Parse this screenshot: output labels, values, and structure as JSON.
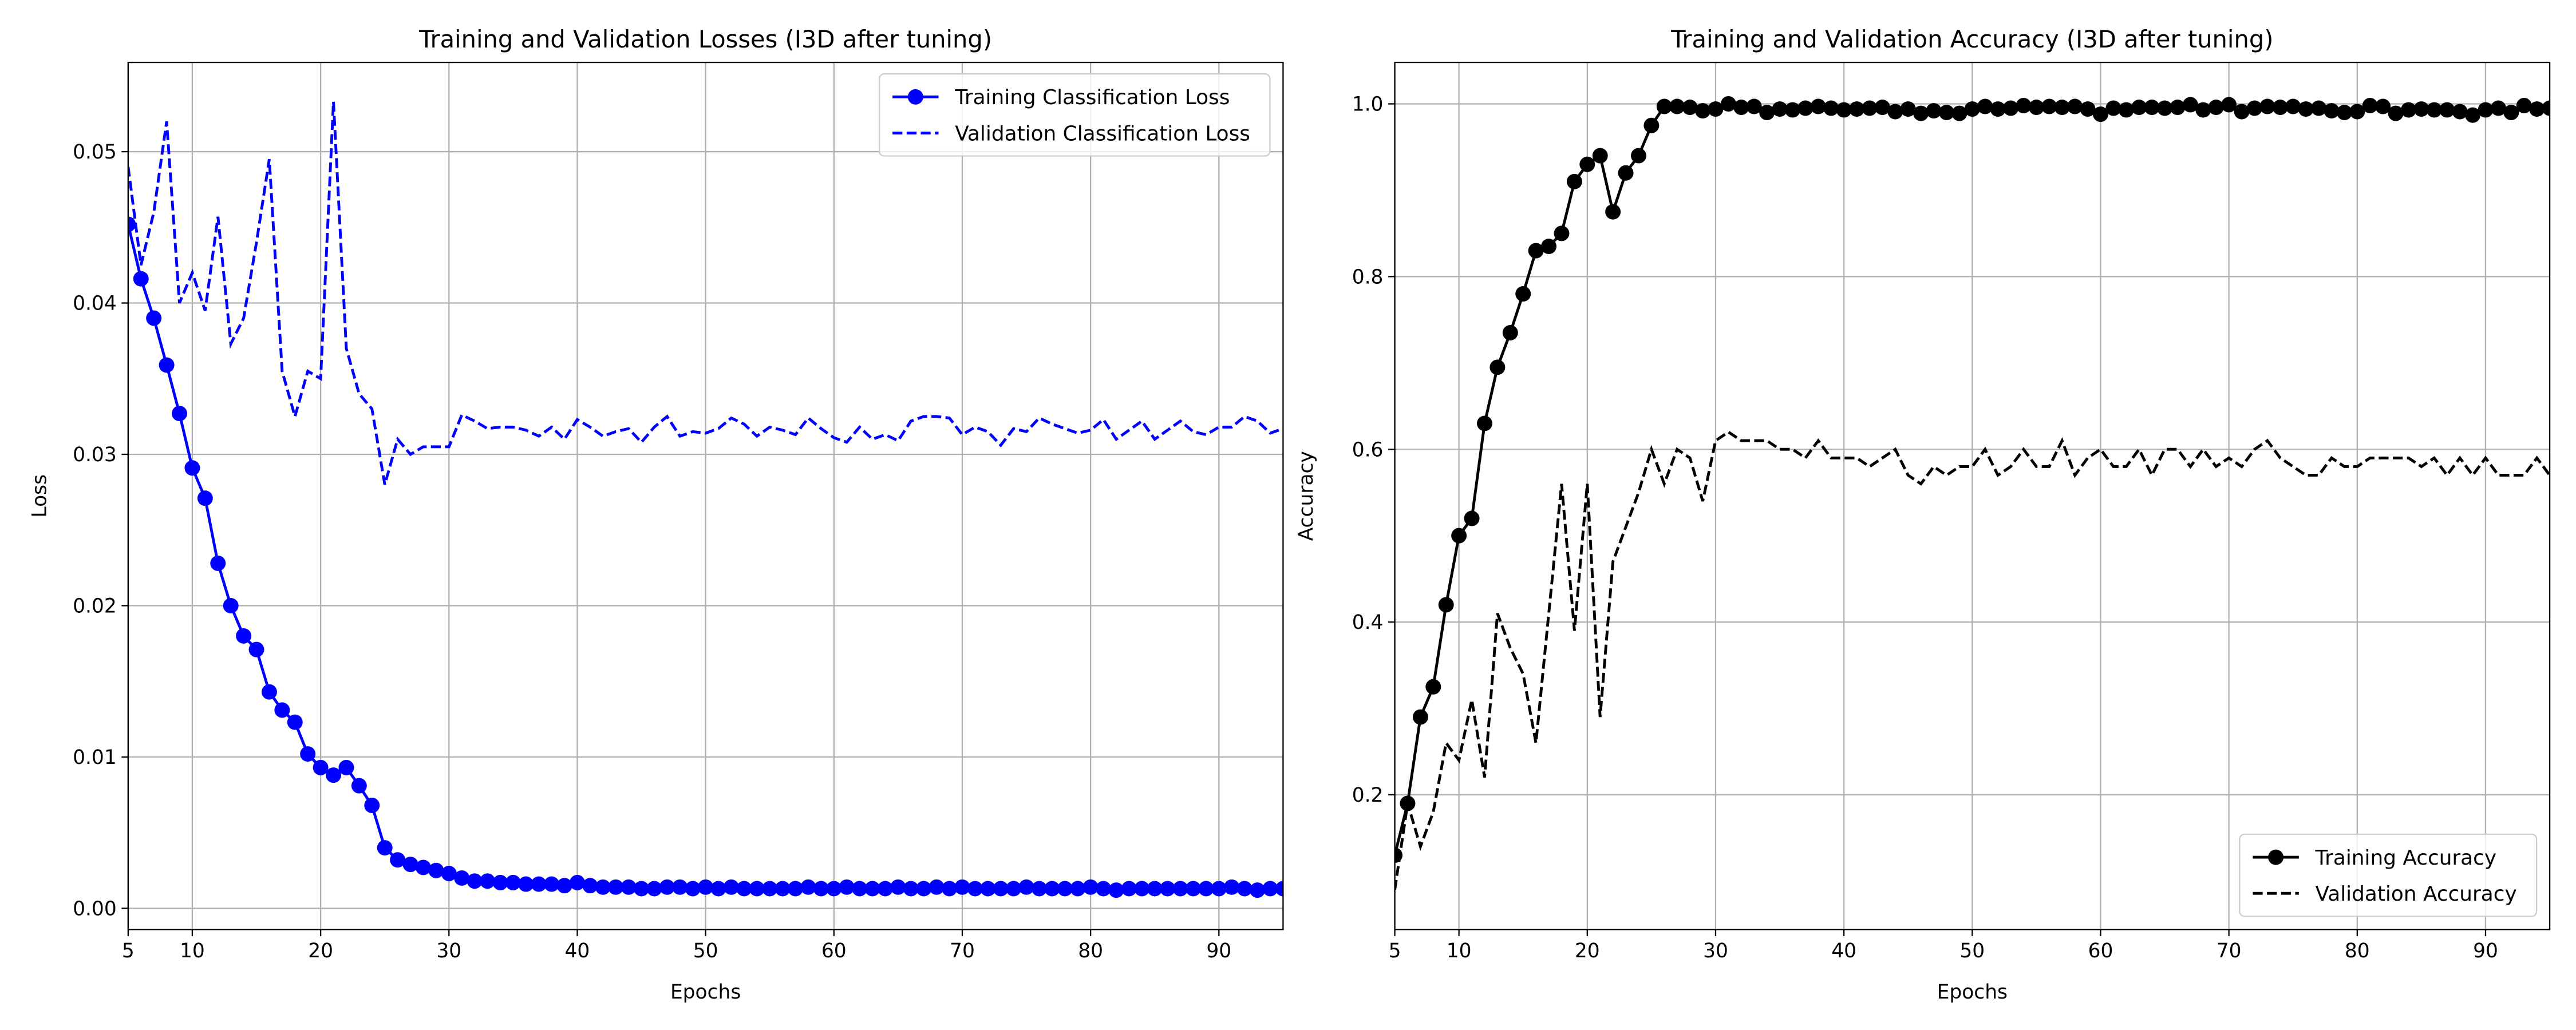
{
  "chart_data": [
    {
      "type": "line",
      "title": "Training and Validation Losses (I3D after tuning)",
      "xlabel": "Epochs",
      "ylabel": "Loss",
      "x": [
        5,
        6,
        7,
        8,
        9,
        10,
        11,
        12,
        13,
        14,
        15,
        16,
        17,
        18,
        19,
        20,
        21,
        22,
        23,
        24,
        25,
        26,
        27,
        28,
        29,
        30,
        31,
        32,
        33,
        34,
        35,
        36,
        37,
        38,
        39,
        40,
        41,
        42,
        43,
        44,
        45,
        46,
        47,
        48,
        49,
        50,
        51,
        52,
        53,
        54,
        55,
        56,
        57,
        58,
        59,
        60,
        61,
        62,
        63,
        64,
        65,
        66,
        67,
        68,
        69,
        70,
        71,
        72,
        73,
        74,
        75,
        76,
        77,
        78,
        79,
        80,
        81,
        82,
        83,
        84,
        85,
        86,
        87,
        88,
        89,
        90,
        91,
        92,
        93,
        94,
        95
      ],
      "xlim": [
        5,
        95
      ],
      "xticks": [
        5,
        10,
        20,
        30,
        40,
        50,
        60,
        70,
        80,
        90
      ],
      "ylim": [
        -0.0014,
        0.0559
      ],
      "yticks": [
        {
          "value": 0,
          "label": "0.00"
        },
        0.01,
        0.02,
        0.03,
        0.04,
        0.05
      ],
      "grid": true,
      "legend": "upper right",
      "series": [
        {
          "name": "Training Classification Loss",
          "color": "#0000ff",
          "linestyle": "solid",
          "marker": "circle",
          "values": [
            0.0452,
            0.0416,
            0.039,
            0.0359,
            0.0327,
            0.0291,
            0.0271,
            0.0228,
            0.02,
            0.018,
            0.0171,
            0.0143,
            0.0131,
            0.0123,
            0.0102,
            0.0093,
            0.0088,
            0.0093,
            0.0081,
            0.0068,
            0.004,
            0.0032,
            0.0029,
            0.0027,
            0.0025,
            0.0023,
            0.002,
            0.0018,
            0.0018,
            0.0017,
            0.0017,
            0.0016,
            0.0016,
            0.0016,
            0.0015,
            0.0017,
            0.0015,
            0.0014,
            0.0014,
            0.0014,
            0.0013,
            0.0013,
            0.0014,
            0.0014,
            0.0013,
            0.0014,
            0.0013,
            0.0014,
            0.0013,
            0.0013,
            0.0013,
            0.0013,
            0.0013,
            0.0014,
            0.0013,
            0.0013,
            0.0014,
            0.0013,
            0.0013,
            0.0013,
            0.0014,
            0.0013,
            0.0013,
            0.0014,
            0.0013,
            0.0014,
            0.0013,
            0.0013,
            0.0013,
            0.0013,
            0.0014,
            0.0013,
            0.0013,
            0.0013,
            0.0013,
            0.0014,
            0.0013,
            0.0012,
            0.0013,
            0.0013,
            0.0013,
            0.0013,
            0.0013,
            0.0013,
            0.0013,
            0.0013,
            0.0014,
            0.0013,
            0.0012,
            0.0013,
            0.0013
          ]
        },
        {
          "name": "Validation Classification Loss",
          "color": "#0000ff",
          "linestyle": "dashed",
          "marker": "none",
          "values": [
            0.049,
            0.0425,
            0.046,
            0.052,
            0.04,
            0.042,
            0.0395,
            0.0457,
            0.0373,
            0.039,
            0.044,
            0.0495,
            0.0355,
            0.0325,
            0.0355,
            0.035,
            0.0533,
            0.037,
            0.034,
            0.033,
            0.028,
            0.031,
            0.03,
            0.0305,
            0.0305,
            0.0305,
            0.0326,
            0.0322,
            0.0317,
            0.0318,
            0.0318,
            0.0316,
            0.0312,
            0.0318,
            0.031,
            0.0323,
            0.0318,
            0.0312,
            0.0315,
            0.0317,
            0.0308,
            0.0318,
            0.0325,
            0.0312,
            0.0315,
            0.0314,
            0.0317,
            0.0324,
            0.032,
            0.0312,
            0.0318,
            0.0316,
            0.0313,
            0.0324,
            0.0317,
            0.0311,
            0.0308,
            0.0318,
            0.031,
            0.0313,
            0.0309,
            0.0322,
            0.0325,
            0.0325,
            0.0324,
            0.0313,
            0.0318,
            0.0315,
            0.0306,
            0.0317,
            0.0315,
            0.0324,
            0.032,
            0.0317,
            0.0314,
            0.0316,
            0.0323,
            0.031,
            0.0316,
            0.0322,
            0.031,
            0.0316,
            0.0322,
            0.0315,
            0.0313,
            0.0318,
            0.0318,
            0.0325,
            0.0322,
            0.0314,
            0.0317
          ]
        }
      ]
    },
    {
      "type": "line",
      "title": "Training and Validation Accuracy (I3D after tuning)",
      "xlabel": "Epochs",
      "ylabel": "Accuracy",
      "x": [
        5,
        6,
        7,
        8,
        9,
        10,
        11,
        12,
        13,
        14,
        15,
        16,
        17,
        18,
        19,
        20,
        21,
        22,
        23,
        24,
        25,
        26,
        27,
        28,
        29,
        30,
        31,
        32,
        33,
        34,
        35,
        36,
        37,
        38,
        39,
        40,
        41,
        42,
        43,
        44,
        45,
        46,
        47,
        48,
        49,
        50,
        51,
        52,
        53,
        54,
        55,
        56,
        57,
        58,
        59,
        60,
        61,
        62,
        63,
        64,
        65,
        66,
        67,
        68,
        69,
        70,
        71,
        72,
        73,
        74,
        75,
        76,
        77,
        78,
        79,
        80,
        81,
        82,
        83,
        84,
        85,
        86,
        87,
        88,
        89,
        90,
        91,
        92,
        93,
        94,
        95
      ],
      "xlim": [
        5,
        95
      ],
      "xticks": [
        5,
        10,
        20,
        30,
        40,
        50,
        60,
        70,
        80,
        90
      ],
      "ylim": [
        0.044,
        1.048
      ],
      "yticks": [
        0.2,
        0.4,
        0.6,
        0.8,
        {
          "value": 1,
          "label": "1.0"
        }
      ],
      "grid": true,
      "legend": "lower right",
      "series": [
        {
          "name": "Training Accuracy",
          "color": "#000000",
          "linestyle": "solid",
          "marker": "circle",
          "values": [
            0.13,
            0.19,
            0.29,
            0.325,
            0.42,
            0.5,
            0.52,
            0.63,
            0.695,
            0.735,
            0.78,
            0.83,
            0.835,
            0.85,
            0.91,
            0.93,
            0.94,
            0.875,
            0.92,
            0.94,
            0.975,
            0.997,
            0.997,
            0.996,
            0.992,
            0.994,
            1.0,
            0.996,
            0.997,
            0.99,
            0.994,
            0.993,
            0.995,
            0.997,
            0.995,
            0.993,
            0.994,
            0.995,
            0.996,
            0.991,
            0.994,
            0.989,
            0.992,
            0.99,
            0.989,
            0.994,
            0.997,
            0.994,
            0.995,
            0.998,
            0.996,
            0.997,
            0.996,
            0.997,
            0.994,
            0.988,
            0.995,
            0.993,
            0.996,
            0.996,
            0.995,
            0.996,
            0.999,
            0.993,
            0.996,
            0.999,
            0.991,
            0.995,
            0.997,
            0.996,
            0.997,
            0.994,
            0.995,
            0.992,
            0.99,
            0.991,
            0.998,
            0.997,
            0.989,
            0.993,
            0.994,
            0.993,
            0.993,
            0.991,
            0.987,
            0.993,
            0.995,
            0.99,
            0.998,
            0.994,
            0.995
          ]
        },
        {
          "name": "Validation Accuracy",
          "color": "#000000",
          "linestyle": "dashed",
          "marker": "none",
          "values": [
            0.09,
            0.19,
            0.14,
            0.18,
            0.26,
            0.24,
            0.31,
            0.22,
            0.41,
            0.37,
            0.34,
            0.26,
            0.41,
            0.56,
            0.39,
            0.56,
            0.29,
            0.47,
            0.51,
            0.55,
            0.6,
            0.56,
            0.6,
            0.59,
            0.54,
            0.61,
            0.62,
            0.61,
            0.61,
            0.61,
            0.6,
            0.6,
            0.59,
            0.61,
            0.59,
            0.59,
            0.59,
            0.58,
            0.59,
            0.6,
            0.57,
            0.56,
            0.58,
            0.57,
            0.58,
            0.58,
            0.6,
            0.57,
            0.58,
            0.6,
            0.58,
            0.58,
            0.61,
            0.57,
            0.59,
            0.6,
            0.58,
            0.58,
            0.6,
            0.57,
            0.6,
            0.6,
            0.58,
            0.6,
            0.58,
            0.59,
            0.58,
            0.6,
            0.61,
            0.59,
            0.58,
            0.57,
            0.57,
            0.59,
            0.58,
            0.58,
            0.59,
            0.59,
            0.59,
            0.59,
            0.58,
            0.59,
            0.57,
            0.59,
            0.57,
            0.59,
            0.57,
            0.57,
            0.57,
            0.59,
            0.57
          ]
        }
      ]
    }
  ]
}
